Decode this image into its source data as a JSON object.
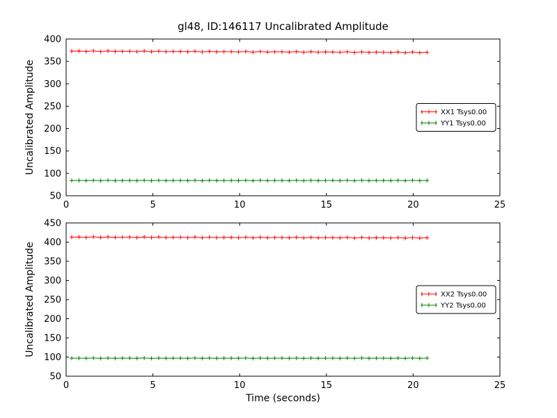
{
  "figure": {
    "title": "gl48, ID:146117 Uncalibrated Amplitude",
    "background": "#ffffff",
    "axes_color": "#000000"
  },
  "chart_data": [
    {
      "type": "line",
      "title": "gl48, ID:146117 Uncalibrated Amplitude",
      "xlabel": "",
      "ylabel": "Uncalibrated Amplitude",
      "xlim": [
        0,
        25
      ],
      "ylim": [
        50,
        400
      ],
      "xticks": [
        0,
        5,
        10,
        15,
        20,
        25
      ],
      "yticks": [
        50,
        100,
        150,
        200,
        250,
        300,
        350,
        400
      ],
      "grid": false,
      "legend_position": "center-right",
      "x_start": 0.32,
      "x_end": 20.8,
      "num_points": 50,
      "series": [
        {
          "name": "XX1 Tsys0.00",
          "color": "#ff0000",
          "marker": "+",
          "y_start": 373,
          "y_end": 370,
          "jitter": 2
        },
        {
          "name": "YY1 Tsys0.00",
          "color": "#008000",
          "marker": "+",
          "y_start": 84,
          "y_end": 84,
          "jitter": 1
        }
      ]
    },
    {
      "type": "line",
      "title": "",
      "xlabel": "Time (seconds)",
      "ylabel": "Uncalibrated Amplitude",
      "xlim": [
        0,
        25
      ],
      "ylim": [
        50,
        450
      ],
      "xticks": [
        0,
        5,
        10,
        15,
        20,
        25
      ],
      "yticks": [
        50,
        100,
        150,
        200,
        250,
        300,
        350,
        400,
        450
      ],
      "grid": false,
      "legend_position": "center-right",
      "x_start": 0.32,
      "x_end": 20.8,
      "num_points": 50,
      "series": [
        {
          "name": "XX2 Tsys0.00",
          "color": "#ff0000",
          "marker": "+",
          "y_start": 413,
          "y_end": 411,
          "jitter": 2
        },
        {
          "name": "YY2 Tsys0.00",
          "color": "#008000",
          "marker": "+",
          "y_start": 97,
          "y_end": 97,
          "jitter": 1
        }
      ]
    }
  ]
}
